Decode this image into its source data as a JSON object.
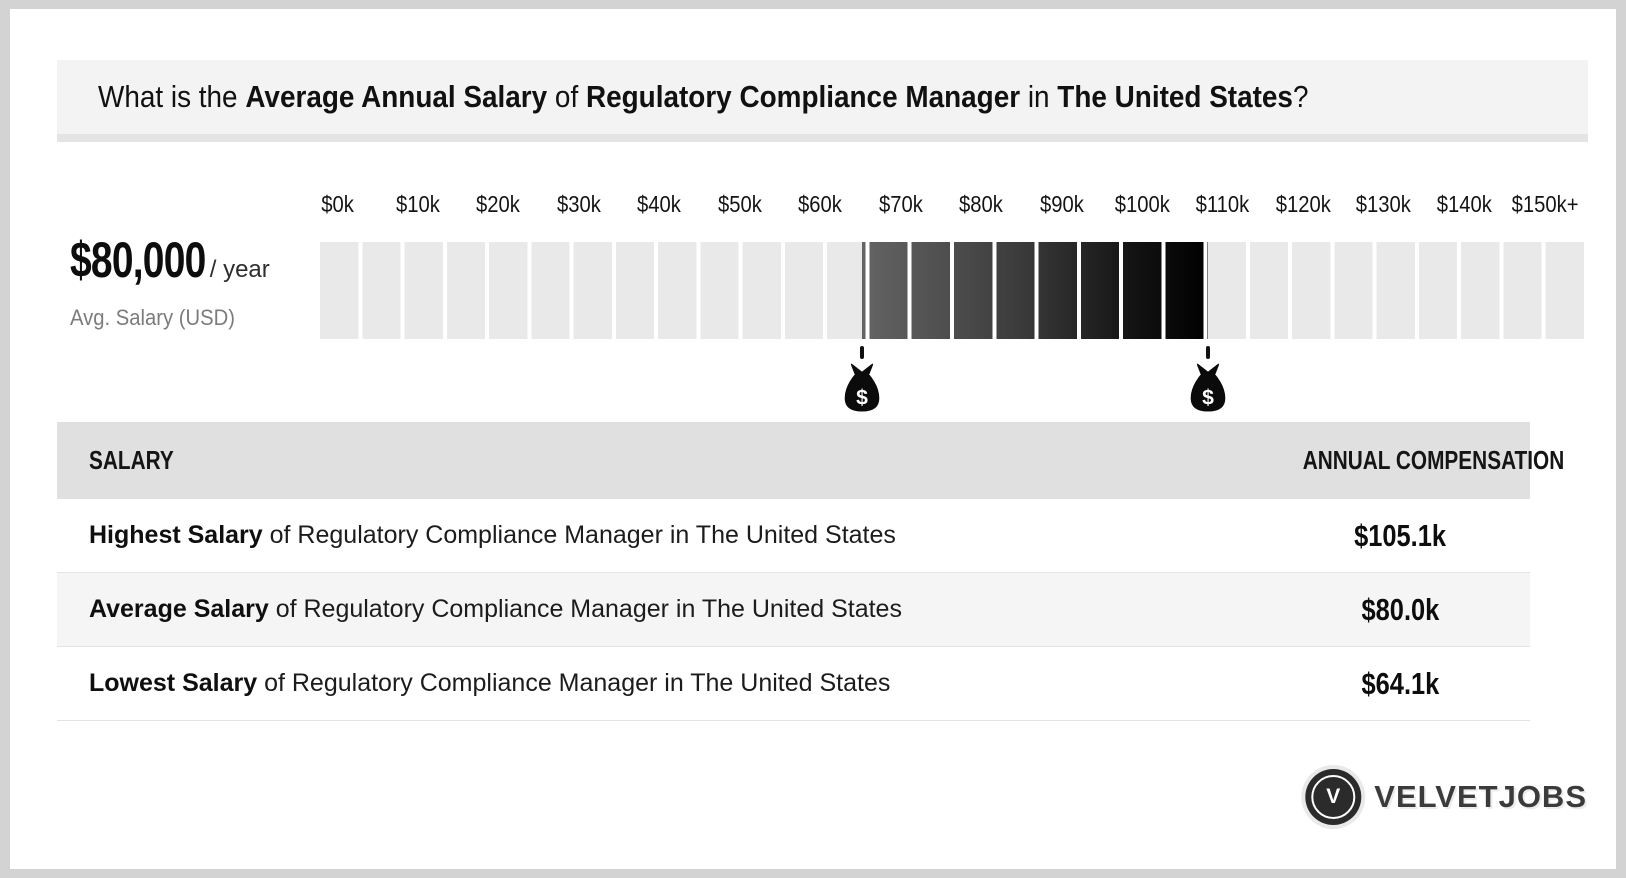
{
  "title": {
    "prefix": "What is the ",
    "bold1": "Average Annual Salary",
    "mid1": " of ",
    "bold2": "Regulatory Compliance Manager",
    "mid2": " in ",
    "bold3": "The United States",
    "suffix": "?"
  },
  "summary": {
    "amount": "$80,000",
    "per": "/ year",
    "caption": "Avg. Salary (USD)"
  },
  "chart_data": {
    "type": "bar",
    "subtype": "salary-range-scale",
    "title": "Salary range scale for Regulatory Compliance Manager in The United States",
    "axis_ticks": [
      "$0k",
      "$10k",
      "$20k",
      "$30k",
      "$40k",
      "$50k",
      "$60k",
      "$70k",
      "$80k",
      "$90k",
      "$100k",
      "$110k",
      "$120k",
      "$130k",
      "$140k",
      "$150k+"
    ],
    "axis_range_k": [
      0,
      150
    ],
    "segment_step_k": 5,
    "segment_count": 30,
    "highlight_range_k": {
      "low": 64.1,
      "high": 105.1
    },
    "average_k": 80.0,
    "markers": [
      {
        "label": "lowest-salary-marker",
        "value_k": 64.1,
        "icon": "money-bag"
      },
      {
        "label": "highest-salary-marker",
        "value_k": 105.1,
        "icon": "money-bag"
      }
    ],
    "colors": {
      "segment_light": "#e9e9e9",
      "highlight_gradient_start": "#646464",
      "highlight_gradient_end": "#000000"
    },
    "legend_position": "none",
    "grid": false
  },
  "table": {
    "headers": [
      "SALARY",
      "ANNUAL COMPENSATION"
    ],
    "rows": [
      {
        "label_bold": "Highest Salary",
        "label_rest": " of Regulatory Compliance Manager in The United States",
        "value": "$105.1k"
      },
      {
        "label_bold": "Average Salary",
        "label_rest": " of Regulatory Compliance Manager in The United States",
        "value": "$80.0k"
      },
      {
        "label_bold": "Lowest Salary",
        "label_rest": " of Regulatory Compliance Manager in The United States",
        "value": "$64.1k"
      }
    ]
  },
  "logo": {
    "monogram": "V",
    "name": "VELVETJOBS"
  },
  "colors": {
    "page_border": "#d3d3d3",
    "card": "#ffffff",
    "banner_bg": "#f3f3f3",
    "banner_border": "#e4e4e4",
    "table_header_bg": "#e0e0e0",
    "table_alt_row_bg": "#f5f5f5",
    "caption_text": "#7c7c7c",
    "logo_dark": "#2b2b2b"
  }
}
